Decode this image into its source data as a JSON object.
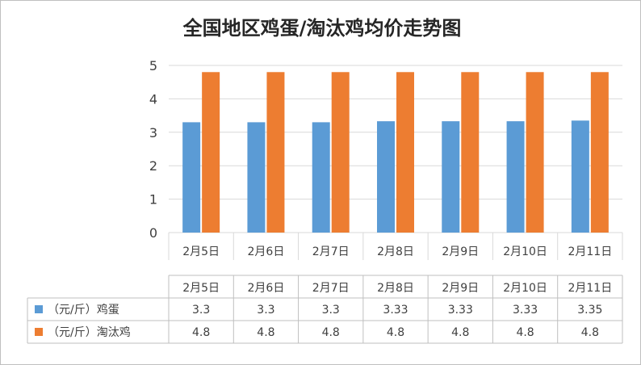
{
  "chart_data": {
    "type": "bar",
    "title": "全国地区鸡蛋/淘汰鸡均价走势图",
    "categories": [
      "2月5日",
      "2月6日",
      "2月7日",
      "2月8日",
      "2月9日",
      "2月10日",
      "2月11日"
    ],
    "series": [
      {
        "name": "（元/斤）鸡蛋",
        "color": "#5b9bd5",
        "values": [
          3.3,
          3.3,
          3.3,
          3.33,
          3.33,
          3.33,
          3.35
        ],
        "display_values": [
          "3.3",
          "3.3",
          "3.3",
          "3.33",
          "3.33",
          "3.33",
          "3.35"
        ]
      },
      {
        "name": "（元/斤）淘汰鸡",
        "color": "#ed7d31",
        "values": [
          4.8,
          4.8,
          4.8,
          4.8,
          4.8,
          4.8,
          4.8
        ],
        "display_values": [
          "4.8",
          "4.8",
          "4.8",
          "4.8",
          "4.8",
          "4.8",
          "4.8"
        ]
      }
    ],
    "ylim": [
      0,
      5
    ],
    "yticks": [
      "0",
      "1",
      "2",
      "3",
      "4",
      "5"
    ],
    "grid": true,
    "legend": "data-table-below",
    "xlabel": "",
    "ylabel": ""
  }
}
